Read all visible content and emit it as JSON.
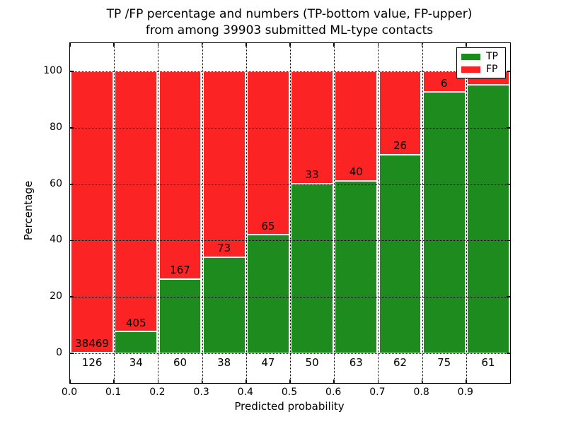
{
  "chart_data": {
    "type": "bar",
    "subtype": "stacked-percentage-histogram",
    "title_lines": [
      "TP /FP percentage and numbers (TP-bottom value, FP-upper)",
      "from among 39903 submitted ML-type contacts"
    ],
    "total_contacts": "39903",
    "xlabel": "Predicted probability",
    "ylabel": "Percentage",
    "xlim": [
      0.0,
      1.0
    ],
    "ylim": [
      -10.5,
      110
    ],
    "x_tick_values": [
      0.0,
      0.1,
      0.2,
      0.3,
      0.4,
      0.5,
      0.6,
      0.7,
      0.8,
      0.9
    ],
    "x_tick_labels": [
      "0.0",
      "0.1",
      "0.2",
      "0.3",
      "0.4",
      "0.5",
      "0.6",
      "0.7",
      "0.8",
      "0.9"
    ],
    "y_tick_values": [
      0,
      20,
      40,
      60,
      80,
      100
    ],
    "y_tick_labels": [
      "0",
      "20",
      "40",
      "60",
      "80",
      "100"
    ],
    "grid": {
      "style": "dotted",
      "axes": "both",
      "on_top_of_bars": true
    },
    "colors": {
      "tp": "#1e8b1e",
      "fp": "#fb2323"
    },
    "legend": {
      "position": "upper-right",
      "entries": [
        {
          "label": "TP",
          "color": "#1e8b1e"
        },
        {
          "label": "FP",
          "color": "#fb2323"
        }
      ]
    },
    "bins": [
      {
        "x0": 0.0,
        "x1": 0.1,
        "tp_label": "126",
        "fp_label": "38469",
        "tp_pct": 0.33
      },
      {
        "x0": 0.1,
        "x1": 0.2,
        "tp_label": "34",
        "fp_label": "405",
        "tp_pct": 7.7
      },
      {
        "x0": 0.2,
        "x1": 0.3,
        "tp_label": "60",
        "fp_label": "167",
        "tp_pct": 26.4
      },
      {
        "x0": 0.3,
        "x1": 0.4,
        "tp_label": "38",
        "fp_label": "73",
        "tp_pct": 34.2
      },
      {
        "x0": 0.4,
        "x1": 0.5,
        "tp_label": "47",
        "fp_label": "65",
        "tp_pct": 42.0
      },
      {
        "x0": 0.5,
        "x1": 0.6,
        "tp_label": "50",
        "fp_label": "33",
        "tp_pct": 60.2
      },
      {
        "x0": 0.6,
        "x1": 0.7,
        "tp_label": "63",
        "fp_label": "40",
        "tp_pct": 61.2
      },
      {
        "x0": 0.7,
        "x1": 0.8,
        "tp_label": "62",
        "fp_label": "26",
        "tp_pct": 70.5
      },
      {
        "x0": 0.8,
        "x1": 0.9,
        "tp_label": "75",
        "fp_label": "6",
        "tp_pct": 92.6
      },
      {
        "x0": 0.9,
        "x1": 1.0,
        "tp_label": "61",
        "fp_label": "",
        "tp_pct": 95.3
      }
    ]
  }
}
